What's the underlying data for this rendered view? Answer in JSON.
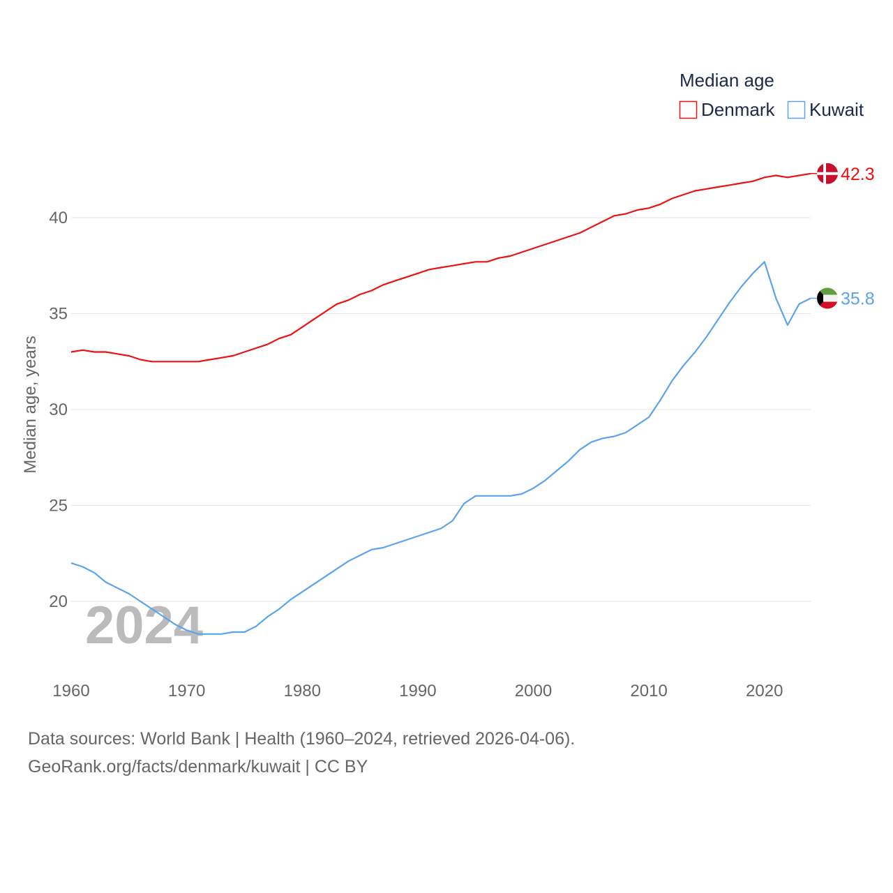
{
  "chart_data": {
    "type": "line",
    "title": "",
    "xlabel": "",
    "ylabel": "Median age, years",
    "xlim": [
      1960,
      2024
    ],
    "ylim": [
      17,
      43
    ],
    "x_ticks": [
      1960,
      1970,
      1980,
      1990,
      2000,
      2010,
      2020
    ],
    "y_ticks": [
      20,
      25,
      30,
      35,
      40
    ],
    "grid": true,
    "legend": {
      "title": "Median age",
      "placement": "top-right"
    },
    "watermark_year": "2024",
    "x": [
      1960,
      1961,
      1962,
      1963,
      1964,
      1965,
      1966,
      1967,
      1968,
      1969,
      1970,
      1971,
      1972,
      1973,
      1974,
      1975,
      1976,
      1977,
      1978,
      1979,
      1980,
      1981,
      1982,
      1983,
      1984,
      1985,
      1986,
      1987,
      1988,
      1989,
      1990,
      1991,
      1992,
      1993,
      1994,
      1995,
      1996,
      1997,
      1998,
      1999,
      2000,
      2001,
      2002,
      2003,
      2004,
      2005,
      2006,
      2007,
      2008,
      2009,
      2010,
      2011,
      2012,
      2013,
      2014,
      2015,
      2016,
      2017,
      2018,
      2019,
      2020,
      2021,
      2022,
      2023,
      2024
    ],
    "series": [
      {
        "name": "Denmark",
        "color": "#ee1111",
        "end_label": "42.3",
        "values": [
          33.0,
          33.1,
          33.0,
          33.0,
          32.9,
          32.8,
          32.6,
          32.5,
          32.5,
          32.5,
          32.5,
          32.5,
          32.6,
          32.7,
          32.8,
          33.0,
          33.2,
          33.4,
          33.7,
          33.9,
          34.3,
          34.7,
          35.1,
          35.5,
          35.7,
          36.0,
          36.2,
          36.5,
          36.7,
          36.9,
          37.1,
          37.3,
          37.4,
          37.5,
          37.6,
          37.7,
          37.7,
          37.9,
          38.0,
          38.2,
          38.4,
          38.6,
          38.8,
          39.0,
          39.2,
          39.5,
          39.8,
          40.1,
          40.2,
          40.4,
          40.5,
          40.7,
          41.0,
          41.2,
          41.4,
          41.5,
          41.6,
          41.7,
          41.8,
          41.9,
          42.1,
          42.2,
          42.1,
          42.2,
          42.3
        ]
      },
      {
        "name": "Kuwait",
        "color": "#5ba3ec",
        "end_label": "35.8",
        "values": [
          22.0,
          21.8,
          21.5,
          21.0,
          20.7,
          20.4,
          20.0,
          19.6,
          19.2,
          18.8,
          18.5,
          18.3,
          18.3,
          18.3,
          18.4,
          18.4,
          18.7,
          19.2,
          19.6,
          20.1,
          20.5,
          20.9,
          21.3,
          21.7,
          22.1,
          22.4,
          22.7,
          22.8,
          23.0,
          23.2,
          23.4,
          23.6,
          23.8,
          24.2,
          25.1,
          25.5,
          25.5,
          25.5,
          25.5,
          25.6,
          25.9,
          26.3,
          26.8,
          27.3,
          27.9,
          28.3,
          28.5,
          28.6,
          28.8,
          29.2,
          29.6,
          30.5,
          31.5,
          32.3,
          33.0,
          33.8,
          34.7,
          35.6,
          36.4,
          37.1,
          37.7,
          35.8,
          34.4,
          35.5,
          35.8
        ]
      }
    ]
  },
  "footer": {
    "line1": "Data sources: World Bank | Health (1960–2024, retrieved 2026-04-06).",
    "line2": "GeoRank.org/facts/denmark/kuwait | CC BY"
  }
}
